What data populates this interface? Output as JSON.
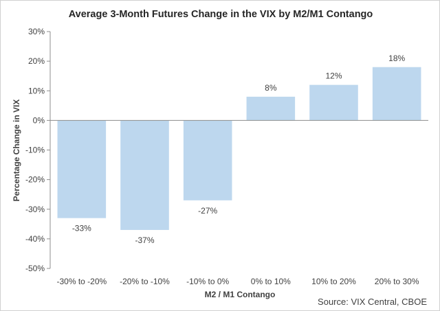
{
  "chart_data": {
    "type": "bar",
    "title": "Average 3-Month Futures Change in the VIX by M2/M1 Contango",
    "xlabel": "M2 / M1 Contango",
    "ylabel": "Percentage Change in VIX",
    "categories": [
      "-30% to -20%",
      "-20% to -10%",
      "-10% to 0%",
      "0% to 10%",
      "10% to 20%",
      "20% to 30%"
    ],
    "values": [
      -33,
      -37,
      -27,
      8,
      12,
      18
    ],
    "data_labels": [
      "-33%",
      "-37%",
      "-27%",
      "8%",
      "12%",
      "18%"
    ],
    "ylim": [
      -50,
      30
    ],
    "yticks": [
      30,
      20,
      10,
      0,
      -10,
      -20,
      -30,
      -40,
      -50
    ],
    "ytick_labels": [
      "30%",
      "20%",
      "10%",
      "0%",
      "-10%",
      "-20%",
      "-30%",
      "-40%",
      "-50%"
    ],
    "grid": false,
    "legend": "none",
    "source": "Source: VIX Central, CBOE",
    "colors": {
      "bar": "#bdd7ee",
      "axis": "#8c8c8c",
      "text": "#404040",
      "title": "#262626"
    }
  }
}
